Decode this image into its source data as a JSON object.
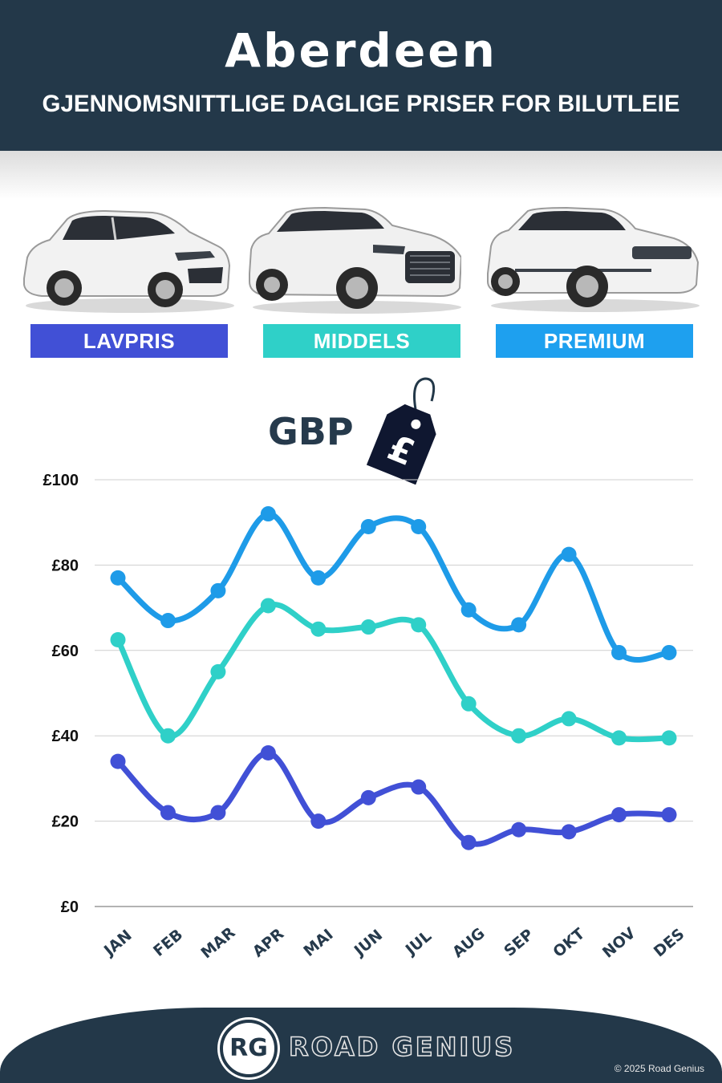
{
  "header": {
    "city": "Aberdeen",
    "subtitle": "GJENNOMSNITTLIGE DAGLIGE PRISER FOR BILUTLEIE"
  },
  "categories": [
    {
      "label": "LAVPRIS",
      "color": "#4150d6",
      "icon": "hatchback-car-icon"
    },
    {
      "label": "MIDDELS",
      "color": "#2fd0c8",
      "icon": "suv-car-icon"
    },
    {
      "label": "PREMIUM",
      "color": "#1ea0ef",
      "icon": "luxury-suv-car-icon"
    }
  ],
  "currency_label": "GBP",
  "price_tag_symbol": "£",
  "chart_data": {
    "type": "line",
    "categories": [
      "JAN",
      "FEB",
      "MAR",
      "APR",
      "MAI",
      "JUN",
      "JUL",
      "AUG",
      "SEP",
      "OKT",
      "NOV",
      "DES"
    ],
    "series": [
      {
        "name": "PREMIUM",
        "color": "#1e9be8",
        "values": [
          77,
          67,
          74,
          92,
          77,
          89,
          89,
          69.5,
          66,
          82.5,
          59.5,
          59.5
        ]
      },
      {
        "name": "MIDDELS",
        "color": "#2fd0c8",
        "values": [
          62.5,
          40,
          55,
          70.5,
          65,
          65.5,
          66,
          47.5,
          40,
          44,
          39.5,
          39.5
        ]
      },
      {
        "name": "LAVPRIS",
        "color": "#4150d6",
        "values": [
          34,
          22,
          22,
          36,
          20,
          25.5,
          28,
          15,
          18,
          17.5,
          21.5,
          21.5
        ]
      }
    ],
    "yticks": [
      "£0",
      "£20",
      "£40",
      "£60",
      "£80",
      "£100"
    ],
    "ylim": [
      0,
      100
    ],
    "grid": true
  },
  "footer": {
    "logo": "RG",
    "brand": "ROAD GENIUS",
    "copyright": "© 2025 Road Genius"
  }
}
